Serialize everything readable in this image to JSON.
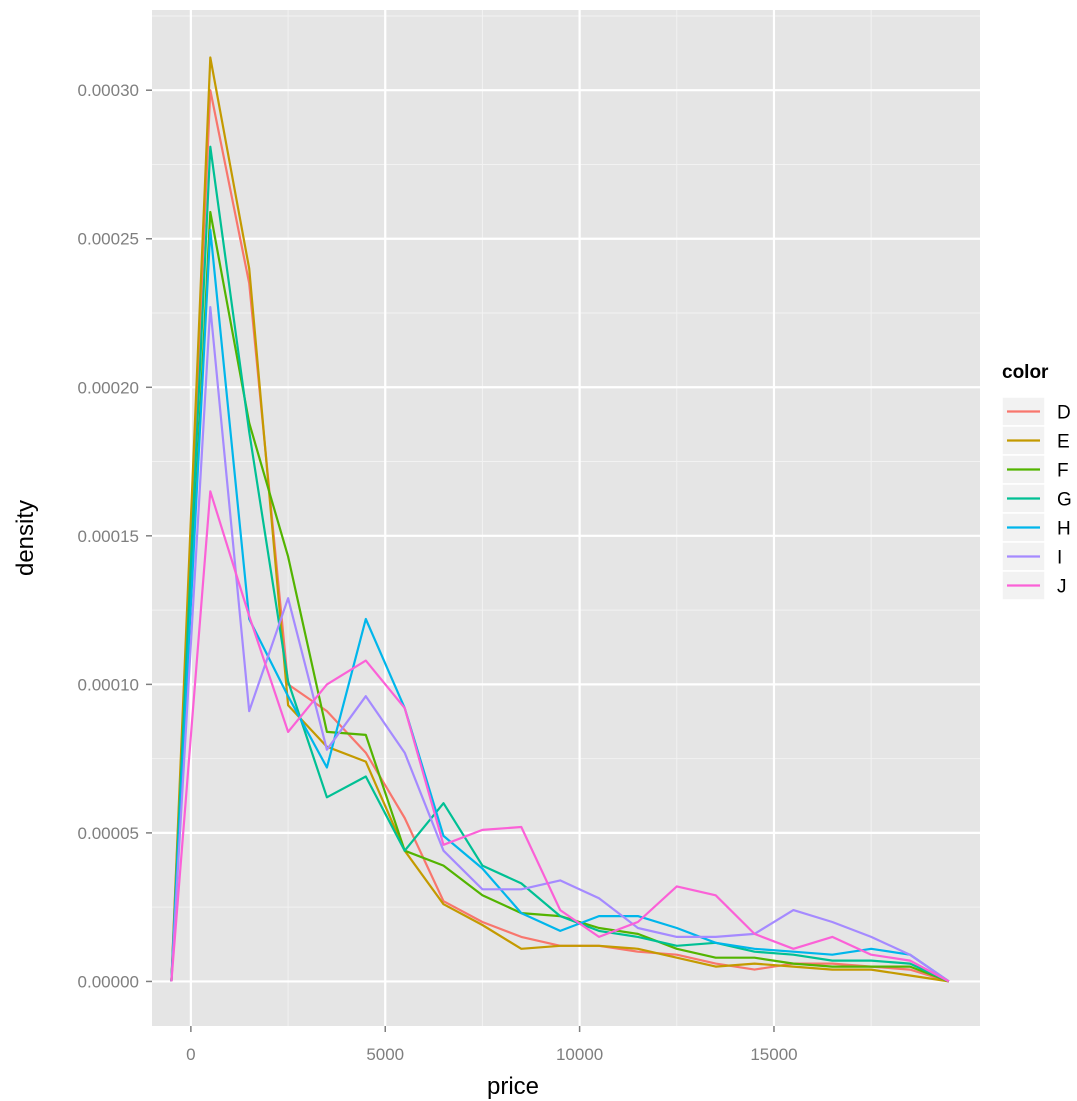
{
  "chart_data": {
    "type": "line",
    "xlabel": "price",
    "ylabel": "density",
    "xlim": [
      -1000,
      20300
    ],
    "ylim": [
      -1.5e-05,
      0.000327
    ],
    "x_ticks": [
      0,
      5000,
      10000,
      15000
    ],
    "x_tick_labels": [
      "0",
      "5000",
      "10000",
      "15000"
    ],
    "y_ticks": [
      0,
      5e-05,
      0.0001,
      0.00015,
      0.0002,
      0.00025,
      0.0003
    ],
    "y_tick_labels": [
      "0.00000",
      "0.00005",
      "0.00010",
      "0.00015",
      "0.00020",
      "0.00025",
      "0.00030"
    ],
    "grid": true,
    "background": "#e5e5e5",
    "legend": {
      "title": "color",
      "position": "right"
    },
    "x": [
      -500,
      500,
      1500,
      2500,
      3500,
      4500,
      5500,
      6500,
      7500,
      8500,
      9500,
      10500,
      11500,
      12500,
      13500,
      14500,
      15500,
      16500,
      17500,
      18500,
      19500
    ],
    "series": [
      {
        "name": "D",
        "color": "#F8766D",
        "values": [
          0,
          0.0003,
          0.000235,
          0.0001,
          9.1e-05,
          7.7e-05,
          5.5e-05,
          2.7e-05,
          2e-05,
          1.5e-05,
          1.2e-05,
          1.2e-05,
          1e-05,
          9e-06,
          6e-06,
          4e-06,
          6e-06,
          6e-06,
          5e-06,
          4e-06,
          0
        ]
      },
      {
        "name": "E",
        "color": "#C49A00",
        "values": [
          0,
          0.000311,
          0.00024,
          9.3e-05,
          7.9e-05,
          7.4e-05,
          4.4e-05,
          2.6e-05,
          1.9e-05,
          1.1e-05,
          1.2e-05,
          1.2e-05,
          1.1e-05,
          8e-06,
          5e-06,
          6e-06,
          5e-06,
          4e-06,
          4e-06,
          2e-06,
          0
        ]
      },
      {
        "name": "F",
        "color": "#53B400",
        "values": [
          0,
          0.000259,
          0.000188,
          0.000143,
          8.4e-05,
          8.3e-05,
          4.4e-05,
          3.9e-05,
          2.9e-05,
          2.3e-05,
          2.2e-05,
          1.8e-05,
          1.6e-05,
          1.1e-05,
          8e-06,
          8e-06,
          6e-06,
          5e-06,
          5e-06,
          5e-06,
          0
        ]
      },
      {
        "name": "G",
        "color": "#00C094",
        "values": [
          0,
          0.000281,
          0.000185,
          0.000101,
          6.2e-05,
          6.9e-05,
          4.4e-05,
          6e-05,
          3.9e-05,
          3.3e-05,
          2.2e-05,
          1.7e-05,
          1.5e-05,
          1.2e-05,
          1.3e-05,
          1e-05,
          9e-06,
          7e-06,
          7e-06,
          6e-06,
          0
        ]
      },
      {
        "name": "H",
        "color": "#00B6EB",
        "values": [
          0,
          0.000253,
          0.000122,
          9.6e-05,
          7.2e-05,
          0.000122,
          9.2e-05,
          4.9e-05,
          3.8e-05,
          2.3e-05,
          1.7e-05,
          2.2e-05,
          2.2e-05,
          1.8e-05,
          1.3e-05,
          1.1e-05,
          1e-05,
          9e-06,
          1.1e-05,
          9e-06,
          0
        ]
      },
      {
        "name": "I",
        "color": "#A58AFF",
        "values": [
          0,
          0.000227,
          9.1e-05,
          0.000129,
          7.8e-05,
          9.6e-05,
          7.7e-05,
          4.4e-05,
          3.1e-05,
          3.1e-05,
          3.4e-05,
          2.8e-05,
          1.8e-05,
          1.5e-05,
          1.5e-05,
          1.6e-05,
          2.4e-05,
          2e-05,
          1.5e-05,
          9e-06,
          0
        ]
      },
      {
        "name": "J",
        "color": "#FB61D7",
        "values": [
          0,
          0.000165,
          0.000123,
          8.4e-05,
          0.0001,
          0.000108,
          9.2e-05,
          4.6e-05,
          5.1e-05,
          5.2e-05,
          2.4e-05,
          1.5e-05,
          2e-05,
          3.2e-05,
          2.9e-05,
          1.6e-05,
          1.1e-05,
          1.5e-05,
          9e-06,
          7e-06,
          0
        ]
      }
    ]
  }
}
